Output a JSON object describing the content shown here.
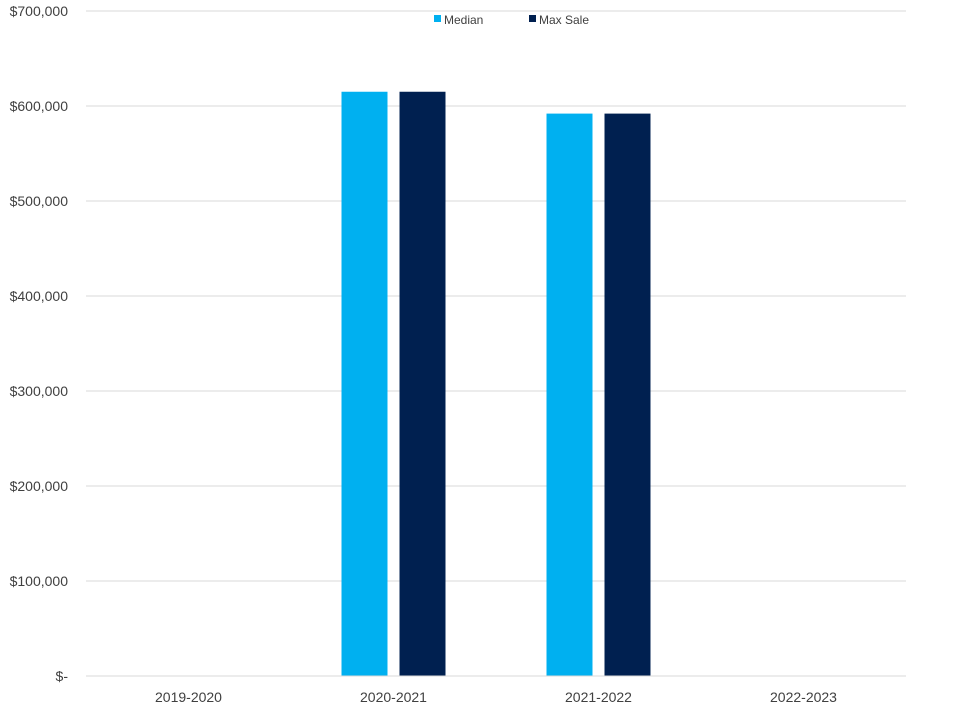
{
  "chart_data": {
    "type": "bar",
    "categories": [
      "2019-2020",
      "2020-2021",
      "2021-2022",
      "2022-2023"
    ],
    "series": [
      {
        "name": "Median",
        "color": "#00b0f0",
        "values": [
          0,
          615000,
          592000,
          0
        ]
      },
      {
        "name": "Max Sale",
        "color": "#002050",
        "values": [
          0,
          615000,
          592000,
          0
        ]
      }
    ],
    "yticks": [
      0,
      100000,
      200000,
      300000,
      400000,
      500000,
      600000,
      700000
    ],
    "ytick_labels": [
      "$-",
      "$100,000",
      "$200,000",
      "$300,000",
      "$400,000",
      "$500,000",
      "$600,000",
      "$700,000"
    ],
    "ylim": [
      0,
      700000
    ],
    "grid": true,
    "legend_position": "top-center"
  }
}
